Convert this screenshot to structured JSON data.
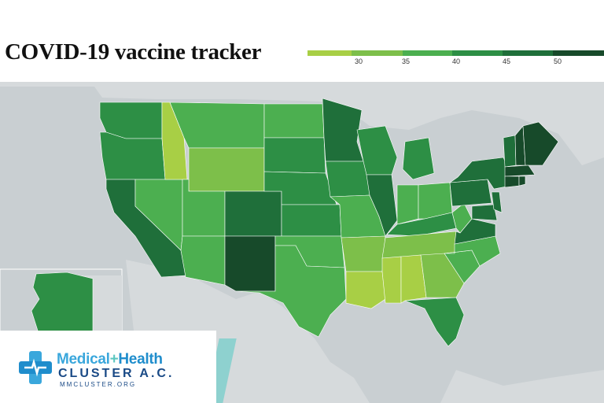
{
  "title": "COVID-19 vaccine tracker",
  "legend": {
    "ticks": [
      "30",
      "35",
      "40",
      "45",
      "50"
    ],
    "colors": [
      "#a8cf45",
      "#7dbf4a",
      "#4caf50",
      "#2d8f45",
      "#1f6f3a",
      "#174a2a"
    ]
  },
  "map": {
    "country": "United States",
    "water_color": "#c9cfd2",
    "land_color": "#d6dadc"
  },
  "logo": {
    "word1": "Medical",
    "plus": "+",
    "word2": "Health",
    "line2": "CLUSTER A.C.",
    "line3": "MMCLUSTER.ORG"
  }
}
